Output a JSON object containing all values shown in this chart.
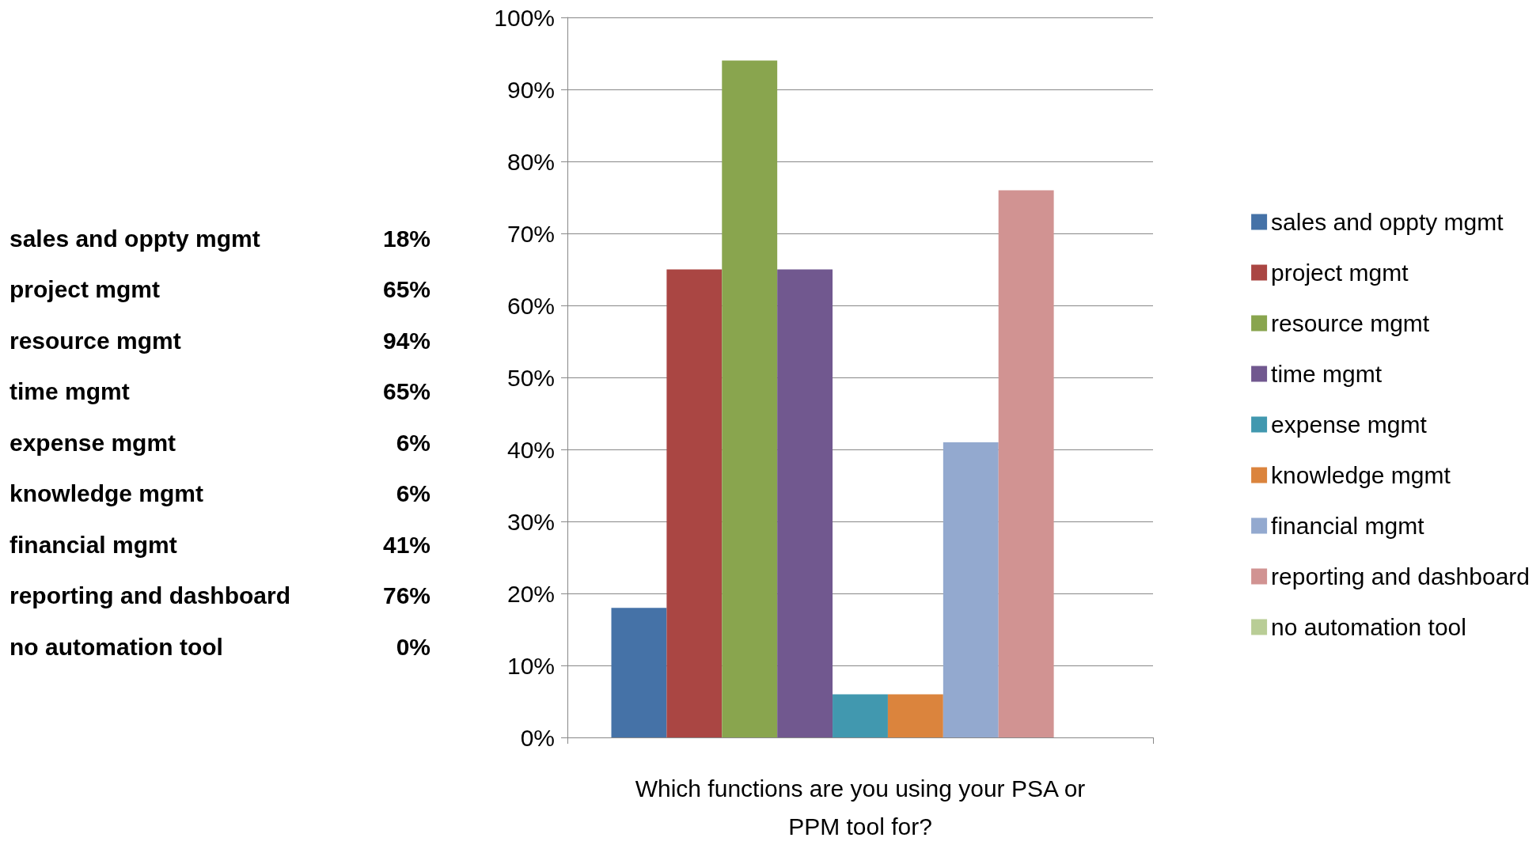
{
  "chart_data": {
    "type": "bar",
    "xlabel": "Which functions are you using your PSA or\nPPM tool for?",
    "categories": [
      null
    ],
    "ylim": [
      0,
      100
    ],
    "yticks": [
      {
        "value": 0,
        "label": "0%"
      },
      {
        "value": 10,
        "label": "10%"
      },
      {
        "value": 20,
        "label": "20%"
      },
      {
        "value": 30,
        "label": "30%"
      },
      {
        "value": 40,
        "label": "40%"
      },
      {
        "value": 50,
        "label": "50%"
      },
      {
        "value": 60,
        "label": "60%"
      },
      {
        "value": 70,
        "label": "70%"
      },
      {
        "value": 80,
        "label": "80%"
      },
      {
        "value": 90,
        "label": "90%"
      },
      {
        "value": 100,
        "label": "100%"
      }
    ],
    "grid": "y",
    "legend": "right",
    "annotations": [
      "18%",
      "65%",
      "94%",
      "65%",
      "6%",
      "6%",
      "41%",
      "76%",
      "0%"
    ],
    "series": [
      {
        "name": "sales and oppty mgmt",
        "color": "#4572a7",
        "values": [
          18
        ]
      },
      {
        "name": "project mgmt",
        "color": "#aa4643",
        "values": [
          65
        ]
      },
      {
        "name": "resource mgmt",
        "color": "#89a54e",
        "values": [
          94
        ]
      },
      {
        "name": "time mgmt",
        "color": "#71588f",
        "values": [
          65
        ]
      },
      {
        "name": "expense mgmt",
        "color": "#4198af",
        "values": [
          6
        ]
      },
      {
        "name": "knowledge mgmt",
        "color": "#db843d",
        "values": [
          6
        ]
      },
      {
        "name": "financial mgmt",
        "color": "#93a9cf",
        "values": [
          41
        ]
      },
      {
        "name": "reporting and dashboard",
        "color": "#d19392",
        "values": [
          76
        ]
      },
      {
        "name": "no automation tool",
        "color": "#b9cd96",
        "values": [
          0
        ]
      }
    ]
  }
}
